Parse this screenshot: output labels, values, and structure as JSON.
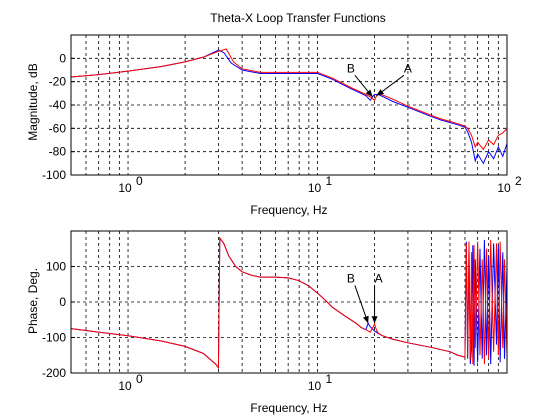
{
  "chart_data": [
    {
      "type": "line",
      "title": "Theta-X Loop Transfer Functions",
      "xlabel": "Frequency, Hz",
      "ylabel": "Magnitude, dB",
      "xscale": "log",
      "xlim": [
        0.5,
        100
      ],
      "ylim": [
        -100,
        20
      ],
      "grid": true,
      "xticks": [
        1,
        10,
        100
      ],
      "xtick_labels": [
        {
          "base": "10",
          "exp": "0"
        },
        {
          "base": "10",
          "exp": "1"
        },
        {
          "base": "10",
          "exp": "2"
        }
      ],
      "yticks": [
        0,
        -20,
        -40,
        -60,
        -80,
        -100
      ],
      "ytick_labels": [
        "0",
        "-20",
        "-40",
        "-60",
        "-80",
        "-100"
      ],
      "series": [
        {
          "color": "#0000ff",
          "x": [
            0.5,
            0.7,
            1,
            1.5,
            2,
            2.5,
            3,
            3.2,
            3.5,
            4,
            5,
            6,
            8,
            10,
            12,
            15,
            18,
            19,
            19.5,
            20,
            21,
            25,
            30,
            40,
            45,
            50,
            55,
            60,
            62,
            65,
            68,
            70,
            75,
            80,
            85,
            90,
            95,
            100
          ],
          "y": [
            -16,
            -14,
            -11,
            -7,
            -3,
            1,
            7,
            5,
            -4,
            -10,
            -13,
            -13,
            -13,
            -13,
            -18,
            -26,
            -32,
            -36,
            -33,
            -31,
            -31,
            -37,
            -42,
            -50,
            -53,
            -55,
            -57,
            -59,
            -63,
            -72,
            -88,
            -82,
            -90,
            -80,
            -86,
            -76,
            -84,
            -73
          ]
        },
        {
          "color": "#ff0000",
          "x": [
            0.5,
            0.7,
            1,
            1.5,
            2,
            2.5,
            3,
            3.3,
            3.6,
            4,
            5,
            6,
            8,
            10,
            12,
            15,
            18,
            19,
            20,
            20.5,
            21,
            25,
            30,
            40,
            45,
            50,
            55,
            60,
            62,
            65,
            68,
            70,
            75,
            80,
            85,
            90,
            95,
            100
          ],
          "y": [
            -16,
            -14,
            -11,
            -7,
            -3,
            1,
            6,
            8,
            -3,
            -9,
            -12,
            -12,
            -12,
            -12,
            -17,
            -25,
            -31,
            -33,
            -36,
            -32,
            -30,
            -35,
            -41,
            -49,
            -52,
            -54,
            -56,
            -58,
            -60,
            -66,
            -76,
            -72,
            -78,
            -70,
            -74,
            -66,
            -64,
            -60
          ]
        }
      ],
      "annotations": [
        {
          "text": "A",
          "x": 30,
          "y": -12,
          "arrow_to": {
            "x": 20.5,
            "y": -32
          }
        },
        {
          "text": "B",
          "x": 15,
          "y": -12,
          "arrow_to": {
            "x": 19.5,
            "y": -33
          }
        }
      ]
    },
    {
      "type": "line",
      "title": "",
      "xlabel": "Frequency, Hz",
      "ylabel": "Phase, Deg.",
      "xscale": "log",
      "xlim": [
        0.5,
        100
      ],
      "ylim": [
        -200,
        200
      ],
      "grid": true,
      "xticks": [
        1,
        10
      ],
      "xtick_labels": [
        {
          "base": "10",
          "exp": "0"
        },
        {
          "base": "10",
          "exp": "1"
        }
      ],
      "yticks": [
        100,
        0,
        -100,
        -200
      ],
      "ytick_labels": [
        "100",
        "0",
        "-100",
        "-200"
      ],
      "series": [
        {
          "color": "#0000ff",
          "x": [
            0.5,
            0.7,
            1,
            1.5,
            2,
            2.5,
            2.9,
            3.0,
            3.05,
            3.2,
            3.4,
            3.7,
            4,
            4.5,
            5,
            6,
            7,
            8,
            9,
            10,
            11,
            12,
            14,
            16,
            17,
            18,
            18.5,
            19,
            20,
            22,
            25,
            30,
            40,
            50,
            55,
            60,
            61,
            62,
            63,
            64,
            65,
            66,
            67,
            68,
            70,
            72,
            74,
            76,
            78,
            80,
            82,
            85,
            88,
            90,
            92,
            95,
            97,
            100
          ],
          "y": [
            -75,
            -85,
            -95,
            -110,
            -125,
            -145,
            -175,
            -185,
            180,
            165,
            130,
            100,
            85,
            75,
            70,
            70,
            68,
            60,
            45,
            25,
            5,
            -15,
            -40,
            -60,
            -72,
            -78,
            -60,
            -70,
            -82,
            -95,
            -105,
            -115,
            -128,
            -140,
            -150,
            -155,
            170,
            -160,
            150,
            -175,
            -130,
            160,
            -180,
            120,
            -170,
            150,
            -160,
            175,
            -150,
            130,
            -175,
            165,
            -120,
            160,
            -170,
            140,
            -160,
            100
          ]
        },
        {
          "color": "#ff0000",
          "x": [
            0.5,
            0.7,
            1,
            1.5,
            2,
            2.5,
            2.9,
            3.0,
            3.05,
            3.2,
            3.4,
            3.7,
            4,
            4.5,
            5,
            6,
            7,
            8,
            9,
            10,
            11,
            12,
            14,
            16,
            17,
            18,
            19,
            20,
            20.5,
            21,
            22,
            25,
            30,
            40,
            50,
            55,
            60,
            61,
            62,
            63,
            64,
            65,
            66,
            67,
            68,
            70,
            72,
            74,
            76,
            78,
            80,
            82,
            85,
            88,
            90,
            92,
            95,
            97,
            100
          ],
          "y": [
            -75,
            -85,
            -95,
            -110,
            -125,
            -145,
            -175,
            -185,
            180,
            165,
            130,
            100,
            85,
            75,
            70,
            70,
            68,
            60,
            45,
            25,
            5,
            -15,
            -40,
            -60,
            -72,
            -78,
            -85,
            -62,
            -80,
            -88,
            -95,
            -105,
            -115,
            -128,
            -140,
            -150,
            -155,
            165,
            -150,
            170,
            -165,
            140,
            -175,
            160,
            -130,
            170,
            -150,
            120,
            -175,
            150,
            -160,
            175,
            -140,
            165,
            -150,
            170,
            -130,
            120,
            -150
          ]
        }
      ],
      "annotations": [
        {
          "text": "A",
          "x": 21,
          "y": 55,
          "arrow_to": {
            "x": 20,
            "y": -60
          }
        },
        {
          "text": "B",
          "x": 15,
          "y": 55,
          "arrow_to": {
            "x": 18.5,
            "y": -60
          }
        }
      ]
    }
  ]
}
